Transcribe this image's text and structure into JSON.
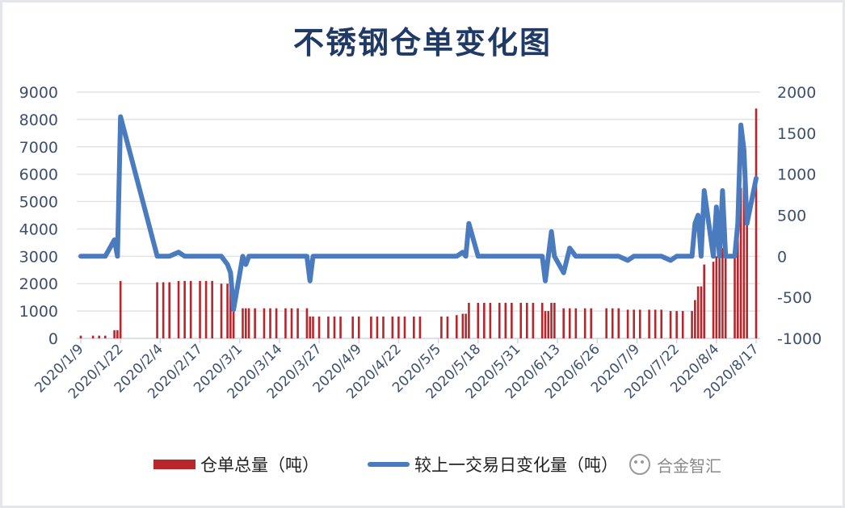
{
  "chart_data": {
    "type": "bar+line",
    "title": "不锈钢仓单变化图",
    "left_axis": {
      "ylim": [
        0,
        9000
      ],
      "ticks": [
        0,
        1000,
        2000,
        3000,
        4000,
        5000,
        6000,
        7000,
        8000,
        9000
      ]
    },
    "right_axis": {
      "ylim": [
        -1000,
        2000
      ],
      "ticks": [
        -1000,
        -500,
        0,
        500,
        1000,
        1500,
        2000
      ]
    },
    "x_ticks": [
      "2020/1/9",
      "2020/1/22",
      "2020/2/4",
      "2020/2/17",
      "2020/3/1",
      "2020/3/14",
      "2020/3/27",
      "2020/4/9",
      "2020/4/22",
      "2020/5/5",
      "2020/5/18",
      "2020/5/31",
      "2020/6/13",
      "2020/6/26",
      "2020/7/9",
      "2020/7/22",
      "2020/8/4",
      "2020/8/17"
    ],
    "grid": true,
    "legend_position": "bottom",
    "series": [
      {
        "name": "仓单总量（吨）",
        "type": "bar",
        "axis": "left",
        "color": "#b8262c"
      },
      {
        "name": "较上一交易日变化量（吨）",
        "type": "line",
        "axis": "right",
        "color": "#4a7bbf"
      }
    ],
    "points": [
      [
        "2020/1/9",
        100,
        0
      ],
      [
        "2020/1/13",
        100,
        0
      ],
      [
        "2020/1/15",
        100,
        0
      ],
      [
        "2020/1/17",
        100,
        0
      ],
      [
        "2020/1/20",
        300,
        200
      ],
      [
        "2020/1/21",
        300,
        0
      ],
      [
        "2020/1/22",
        2100,
        1700
      ],
      [
        "2020/2/3",
        2050,
        0
      ],
      [
        "2020/2/5",
        2050,
        0
      ],
      [
        "2020/2/7",
        2050,
        0
      ],
      [
        "2020/2/10",
        2100,
        50
      ],
      [
        "2020/2/12",
        2100,
        0
      ],
      [
        "2020/2/14",
        2100,
        0
      ],
      [
        "2020/2/17",
        2100,
        0
      ],
      [
        "2020/2/19",
        2100,
        0
      ],
      [
        "2020/2/21",
        2100,
        0
      ],
      [
        "2020/2/24",
        2000,
        0
      ],
      [
        "2020/2/26",
        2000,
        -100
      ],
      [
        "2020/2/27",
        1800,
        -200
      ],
      [
        "2020/2/28",
        1100,
        -650
      ],
      [
        "2020/3/2",
        1100,
        0
      ],
      [
        "2020/3/3",
        1100,
        -100
      ],
      [
        "2020/3/4",
        1100,
        0
      ],
      [
        "2020/3/6",
        1100,
        0
      ],
      [
        "2020/3/9",
        1100,
        0
      ],
      [
        "2020/3/11",
        1100,
        0
      ],
      [
        "2020/3/13",
        1100,
        0
      ],
      [
        "2020/3/16",
        1100,
        0
      ],
      [
        "2020/3/18",
        1100,
        0
      ],
      [
        "2020/3/20",
        1100,
        0
      ],
      [
        "2020/3/23",
        1100,
        0
      ],
      [
        "2020/3/24",
        800,
        -300
      ],
      [
        "2020/3/25",
        800,
        0
      ],
      [
        "2020/3/27",
        800,
        0
      ],
      [
        "2020/3/30",
        800,
        0
      ],
      [
        "2020/4/1",
        800,
        0
      ],
      [
        "2020/4/3",
        800,
        0
      ],
      [
        "2020/4/7",
        800,
        0
      ],
      [
        "2020/4/9",
        800,
        0
      ],
      [
        "2020/4/13",
        800,
        0
      ],
      [
        "2020/4/15",
        800,
        0
      ],
      [
        "2020/4/17",
        800,
        0
      ],
      [
        "2020/4/20",
        800,
        0
      ],
      [
        "2020/4/22",
        800,
        0
      ],
      [
        "2020/4/24",
        800,
        0
      ],
      [
        "2020/4/27",
        800,
        0
      ],
      [
        "2020/4/29",
        800,
        0
      ],
      [
        "2020/5/6",
        800,
        0
      ],
      [
        "2020/5/8",
        800,
        0
      ],
      [
        "2020/5/11",
        850,
        0
      ],
      [
        "2020/5/13",
        900,
        50
      ],
      [
        "2020/5/14",
        900,
        0
      ],
      [
        "2020/5/15",
        1300,
        400
      ],
      [
        "2020/5/18",
        1300,
        0
      ],
      [
        "2020/5/20",
        1300,
        0
      ],
      [
        "2020/5/22",
        1300,
        0
      ],
      [
        "2020/5/25",
        1300,
        0
      ],
      [
        "2020/5/27",
        1300,
        0
      ],
      [
        "2020/5/29",
        1300,
        0
      ],
      [
        "2020/6/1",
        1300,
        0
      ],
      [
        "2020/6/3",
        1300,
        0
      ],
      [
        "2020/6/5",
        1300,
        0
      ],
      [
        "2020/6/8",
        1300,
        0
      ],
      [
        "2020/6/9",
        1000,
        -300
      ],
      [
        "2020/6/10",
        1000,
        0
      ],
      [
        "2020/6/11",
        1300,
        300
      ],
      [
        "2020/6/12",
        1300,
        0
      ],
      [
        "2020/6/15",
        1100,
        -200
      ],
      [
        "2020/6/17",
        1100,
        100
      ],
      [
        "2020/6/19",
        1100,
        0
      ],
      [
        "2020/6/22",
        1100,
        0
      ],
      [
        "2020/6/24",
        1100,
        0
      ],
      [
        "2020/6/29",
        1100,
        0
      ],
      [
        "2020/7/1",
        1100,
        0
      ],
      [
        "2020/7/3",
        1100,
        0
      ],
      [
        "2020/7/6",
        1050,
        -50
      ],
      [
        "2020/7/8",
        1050,
        0
      ],
      [
        "2020/7/10",
        1050,
        0
      ],
      [
        "2020/7/13",
        1050,
        0
      ],
      [
        "2020/7/15",
        1050,
        0
      ],
      [
        "2020/7/17",
        1050,
        0
      ],
      [
        "2020/7/20",
        1000,
        -50
      ],
      [
        "2020/7/22",
        1000,
        0
      ],
      [
        "2020/7/24",
        1000,
        0
      ],
      [
        "2020/7/27",
        1000,
        0
      ],
      [
        "2020/7/28",
        1400,
        400
      ],
      [
        "2020/7/29",
        1900,
        500
      ],
      [
        "2020/7/30",
        1900,
        0
      ],
      [
        "2020/7/31",
        2700,
        800
      ],
      [
        "2020/8/3",
        2800,
        0
      ],
      [
        "2020/8/4",
        3000,
        600
      ],
      [
        "2020/8/5",
        3000,
        0
      ],
      [
        "2020/8/6",
        3300,
        800
      ],
      [
        "2020/8/7",
        3300,
        0
      ],
      [
        "2020/8/10",
        3400,
        0
      ],
      [
        "2020/8/11",
        4000,
        400
      ],
      [
        "2020/8/12",
        5500,
        1600
      ],
      [
        "2020/8/13",
        5800,
        1300
      ],
      [
        "2020/8/14",
        4400,
        400
      ],
      [
        "2020/8/17",
        8400,
        950
      ]
    ]
  },
  "legend": {
    "bar_label": "仓单总量（吨）",
    "line_label": "较上一交易日变化量（吨）"
  },
  "watermark": "合金智汇"
}
